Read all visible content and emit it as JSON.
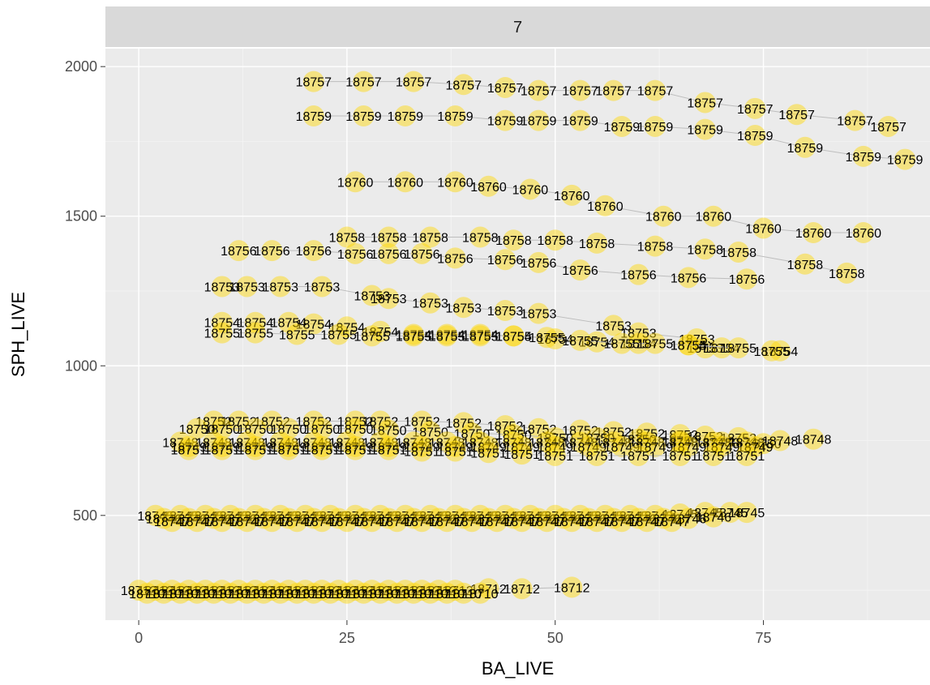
{
  "chart_data": {
    "type": "scatter",
    "facet_label": "7",
    "xlabel": "BA_LIVE",
    "ylabel": "SPH_LIVE",
    "xlim": [
      -4,
      95
    ],
    "ylim": [
      150,
      2060
    ],
    "x_ticks": [
      0,
      25,
      50,
      75
    ],
    "x_tick_labels": [
      "0",
      "25",
      "50",
      "75"
    ],
    "y_ticks": [
      500,
      1000,
      1500,
      2000
    ],
    "y_tick_labels": [
      "500",
      "1000",
      "1500",
      "2000"
    ],
    "grid": true,
    "point_color": "#ffd700",
    "series": [
      {
        "label": "18757",
        "y": [
          1950,
          1950,
          1950,
          1940,
          1930,
          1920,
          1920,
          1920,
          1920,
          1880,
          1860,
          1840,
          1820,
          1800
        ],
        "x": [
          21,
          27,
          33,
          39,
          44,
          48,
          53,
          57,
          62,
          68,
          74,
          79,
          86,
          90
        ]
      },
      {
        "label": "18759",
        "y": [
          1835,
          1835,
          1835,
          1835,
          1820,
          1820,
          1820,
          1800,
          1800,
          1790,
          1770,
          1730,
          1700,
          1690
        ],
        "x": [
          21,
          27,
          32,
          38,
          44,
          48,
          53,
          58,
          62,
          68,
          74,
          80,
          87,
          92
        ]
      },
      {
        "label": "18760",
        "y": [
          1615,
          1615,
          1615,
          1600,
          1590,
          1570,
          1535,
          1500,
          1500,
          1460,
          1445,
          1445
        ],
        "x": [
          26,
          32,
          38,
          42,
          47,
          52,
          56,
          63,
          69,
          75,
          81,
          87
        ]
      },
      {
        "label": "18758",
        "y": [
          1430,
          1430,
          1430,
          1430,
          1420,
          1420,
          1410,
          1400,
          1390,
          1380,
          1340,
          1310
        ],
        "x": [
          25,
          30,
          35,
          41,
          45,
          50,
          55,
          62,
          68,
          72,
          80,
          85
        ]
      },
      {
        "label": "18756",
        "y": [
          1385,
          1385,
          1385,
          1375,
          1375,
          1375,
          1360,
          1355,
          1345,
          1320,
          1305,
          1295,
          1290
        ],
        "x": [
          12,
          16,
          21,
          26,
          30,
          34,
          38,
          44,
          48,
          53,
          60,
          66,
          73
        ]
      },
      {
        "label": "18753",
        "y": [
          1265,
          1265,
          1265,
          1265,
          1235,
          1225,
          1210,
          1195,
          1185,
          1175,
          1135,
          1110,
          1090,
          1060
        ],
        "x": [
          10,
          13,
          17,
          22,
          28,
          30,
          35,
          39,
          44,
          48,
          57,
          60,
          67,
          68
        ]
      },
      {
        "label": "18754",
        "y": [
          1145,
          1145,
          1145,
          1140,
          1130,
          1115,
          1105,
          1105,
          1105,
          1100,
          1090,
          1080,
          1075,
          1070,
          1060,
          1050
        ],
        "x": [
          10,
          14,
          18,
          21,
          25,
          29,
          33,
          37,
          41,
          45,
          50,
          55,
          60,
          66,
          70,
          77
        ]
      },
      {
        "label": "18755",
        "y": [
          1110,
          1110,
          1105,
          1105,
          1100,
          1100,
          1100,
          1100,
          1100,
          1095,
          1085,
          1075,
          1075,
          1070,
          1060,
          1050
        ],
        "x": [
          10,
          14,
          19,
          24,
          28,
          33,
          37,
          41,
          45,
          49,
          53,
          58,
          62,
          66,
          72,
          76
        ]
      },
      {
        "label": "18752",
        "y": [
          815,
          815,
          815,
          815,
          815,
          815,
          815,
          810,
          800,
          790,
          785,
          780,
          775,
          770,
          765,
          760
        ],
        "x": [
          9,
          12,
          16,
          21,
          26,
          29,
          34,
          39,
          44,
          48,
          53,
          57,
          61,
          65,
          68,
          72
        ]
      },
      {
        "label": "18750",
        "y": [
          790,
          790,
          790,
          790,
          790,
          790,
          785,
          780,
          775,
          770,
          760,
          760,
          755,
          750,
          745,
          740
        ],
        "x": [
          7,
          10,
          14,
          18,
          22,
          26,
          30,
          35,
          40,
          45,
          50,
          55,
          60,
          65,
          70,
          75
        ]
      },
      {
        "label": "18748",
        "y": [
          745,
          745,
          745,
          745,
          745,
          745,
          745,
          745,
          745,
          745,
          745,
          745,
          745,
          745,
          745,
          745,
          745,
          745,
          750,
          755
        ],
        "x": [
          5,
          9,
          13,
          17,
          21,
          25,
          29,
          33,
          37,
          41,
          45,
          49,
          53,
          57,
          61,
          65,
          69,
          73,
          77,
          81
        ]
      },
      {
        "label": "18749",
        "y": [
          730,
          730,
          730,
          730,
          730,
          730,
          730,
          730,
          730,
          730,
          730,
          730,
          730,
          730,
          730,
          730,
          730,
          730
        ],
        "x": [
          6,
          10,
          14,
          18,
          22,
          26,
          30,
          34,
          38,
          42,
          46,
          50,
          54,
          58,
          62,
          66,
          70,
          74
        ]
      },
      {
        "label": "18751",
        "y": [
          720,
          720,
          720,
          720,
          720,
          720,
          720,
          715,
          715,
          710,
          705,
          700,
          700,
          700,
          700,
          700,
          700
        ],
        "x": [
          6,
          10,
          14,
          18,
          22,
          26,
          30,
          34,
          38,
          42,
          46,
          50,
          55,
          60,
          65,
          69,
          73
        ]
      },
      {
        "label": "18745",
        "y": [
          500,
          500,
          500,
          500,
          500,
          500,
          500,
          500,
          500,
          500,
          500,
          500,
          500,
          500,
          500,
          500,
          500,
          500,
          500,
          500,
          500,
          505,
          510,
          510,
          510
        ],
        "x": [
          2,
          5,
          8,
          11,
          14,
          17,
          20,
          23,
          26,
          29,
          32,
          35,
          38,
          41,
          44,
          47,
          50,
          53,
          56,
          59,
          62,
          65,
          68,
          71,
          73
        ]
      },
      {
        "label": "18746",
        "y": [
          490,
          490,
          490,
          490,
          490,
          490,
          490,
          490,
          490,
          490,
          490,
          490,
          490,
          490,
          490,
          490,
          490,
          490,
          490,
          490,
          490,
          490,
          495
        ],
        "x": [
          3,
          6,
          9,
          12,
          15,
          18,
          21,
          24,
          27,
          30,
          33,
          36,
          39,
          42,
          45,
          48,
          51,
          54,
          57,
          60,
          63,
          66,
          69
        ]
      },
      {
        "label": "18747",
        "y": [
          480,
          480,
          480,
          480,
          480,
          480,
          480,
          480,
          480,
          480,
          480,
          480,
          480,
          480,
          480,
          480,
          480,
          480,
          480,
          480,
          480
        ],
        "x": [
          4,
          7,
          10,
          13,
          16,
          19,
          22,
          25,
          28,
          31,
          34,
          37,
          40,
          43,
          46,
          49,
          52,
          55,
          58,
          61,
          64
        ]
      },
      {
        "label": "18712",
        "y": [
          250,
          250,
          250,
          250,
          250,
          250,
          250,
          250,
          250,
          250,
          250,
          250,
          250,
          250,
          250,
          250,
          250,
          250,
          250,
          250,
          255,
          255,
          260
        ],
        "x": [
          0,
          2,
          4,
          6,
          8,
          10,
          12,
          14,
          16,
          18,
          20,
          22,
          24,
          26,
          28,
          30,
          32,
          34,
          36,
          38,
          42,
          46,
          52
        ]
      },
      {
        "label": "18710",
        "y": [
          240,
          240,
          240,
          240,
          240,
          240,
          240,
          240,
          240,
          240,
          240,
          240,
          240,
          240,
          240,
          240,
          240,
          240,
          240,
          240,
          240
        ],
        "x": [
          1,
          3,
          5,
          7,
          9,
          11,
          13,
          15,
          17,
          19,
          21,
          23,
          25,
          27,
          29,
          31,
          33,
          35,
          37,
          39,
          41
        ]
      }
    ]
  }
}
